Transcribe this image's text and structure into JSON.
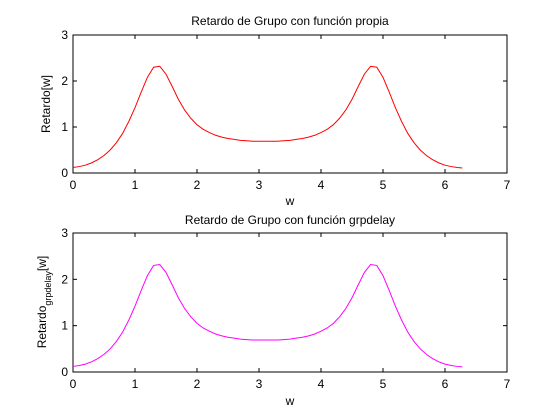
{
  "chart_data": [
    {
      "type": "line",
      "title": "Retardo de Grupo con función propia",
      "xlabel": "w",
      "ylabel": "Retardo[w]",
      "ylabel_sub": "",
      "ylabel_suffix": "",
      "xlim": [
        0,
        7
      ],
      "ylim": [
        0,
        3
      ],
      "xticks": [
        "0",
        "1",
        "2",
        "3",
        "4",
        "5",
        "6",
        "7"
      ],
      "yticks": [
        "0",
        "1",
        "2",
        "3"
      ],
      "grid": false,
      "series": [
        {
          "color": "#ff0000",
          "x": [
            0,
            0.1,
            0.2,
            0.3,
            0.4,
            0.5,
            0.6,
            0.7,
            0.8,
            0.9,
            1.0,
            1.1,
            1.2,
            1.3,
            1.4,
            1.5,
            1.6,
            1.7,
            1.8,
            1.9,
            2.0,
            2.1,
            2.2,
            2.3,
            2.4,
            2.5,
            2.6,
            2.7,
            2.8,
            2.9,
            3.0,
            3.1,
            3.2,
            3.3,
            3.4,
            3.5,
            3.6,
            3.7,
            3.8,
            3.9,
            4.0,
            4.1,
            4.2,
            4.3,
            4.4,
            4.5,
            4.6,
            4.7,
            4.8,
            4.9,
            5.0,
            5.1,
            5.2,
            5.3,
            5.4,
            5.5,
            5.6,
            5.7,
            5.8,
            5.9,
            6.0,
            6.1,
            6.2,
            6.28
          ],
          "y": [
            0.12,
            0.14,
            0.17,
            0.22,
            0.29,
            0.38,
            0.5,
            0.66,
            0.86,
            1.12,
            1.42,
            1.76,
            2.08,
            2.3,
            2.32,
            2.15,
            1.88,
            1.6,
            1.37,
            1.19,
            1.05,
            0.95,
            0.88,
            0.82,
            0.78,
            0.75,
            0.73,
            0.71,
            0.7,
            0.69,
            0.69,
            0.69,
            0.69,
            0.69,
            0.7,
            0.71,
            0.73,
            0.75,
            0.78,
            0.82,
            0.88,
            0.95,
            1.05,
            1.19,
            1.37,
            1.6,
            1.88,
            2.15,
            2.32,
            2.3,
            2.08,
            1.76,
            1.42,
            1.12,
            0.86,
            0.66,
            0.5,
            0.38,
            0.29,
            0.22,
            0.17,
            0.14,
            0.12,
            0.11
          ]
        }
      ]
    },
    {
      "type": "line",
      "title": "Retardo de Grupo con función grpdelay",
      "xlabel": "w",
      "ylabel": "Retardo",
      "ylabel_sub": "grpdelay",
      "ylabel_suffix": "[w]",
      "xlim": [
        0,
        7
      ],
      "ylim": [
        0,
        3
      ],
      "xticks": [
        "0",
        "1",
        "2",
        "3",
        "4",
        "5",
        "6",
        "7"
      ],
      "yticks": [
        "0",
        "1",
        "2",
        "3"
      ],
      "grid": false,
      "series": [
        {
          "color": "#ff00ff",
          "x": [
            0,
            0.1,
            0.2,
            0.3,
            0.4,
            0.5,
            0.6,
            0.7,
            0.8,
            0.9,
            1.0,
            1.1,
            1.2,
            1.3,
            1.4,
            1.5,
            1.6,
            1.7,
            1.8,
            1.9,
            2.0,
            2.1,
            2.2,
            2.3,
            2.4,
            2.5,
            2.6,
            2.7,
            2.8,
            2.9,
            3.0,
            3.1,
            3.2,
            3.3,
            3.4,
            3.5,
            3.6,
            3.7,
            3.8,
            3.9,
            4.0,
            4.1,
            4.2,
            4.3,
            4.4,
            4.5,
            4.6,
            4.7,
            4.8,
            4.9,
            5.0,
            5.1,
            5.2,
            5.3,
            5.4,
            5.5,
            5.6,
            5.7,
            5.8,
            5.9,
            6.0,
            6.1,
            6.2,
            6.28
          ],
          "y": [
            0.12,
            0.14,
            0.17,
            0.22,
            0.29,
            0.38,
            0.5,
            0.66,
            0.86,
            1.12,
            1.42,
            1.76,
            2.08,
            2.3,
            2.32,
            2.15,
            1.88,
            1.6,
            1.37,
            1.19,
            1.05,
            0.95,
            0.88,
            0.82,
            0.78,
            0.75,
            0.73,
            0.71,
            0.7,
            0.69,
            0.69,
            0.69,
            0.69,
            0.69,
            0.7,
            0.71,
            0.73,
            0.75,
            0.78,
            0.82,
            0.88,
            0.95,
            1.05,
            1.19,
            1.37,
            1.6,
            1.88,
            2.15,
            2.32,
            2.3,
            2.08,
            1.76,
            1.42,
            1.12,
            0.86,
            0.66,
            0.5,
            0.38,
            0.29,
            0.22,
            0.17,
            0.14,
            0.12,
            0.11
          ]
        }
      ]
    }
  ]
}
